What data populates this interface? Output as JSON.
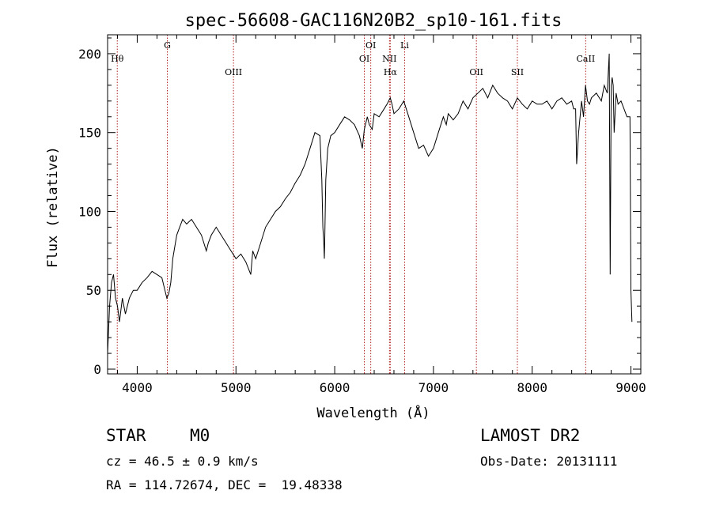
{
  "chart_data": {
    "type": "line",
    "title": "spec-56608-GAC116N20B2_sp10-161.fits",
    "xlabel": "Wavelength (Å)",
    "ylabel": "Flux (relative)",
    "xlim": [
      3700,
      9100
    ],
    "ylim": [
      -3,
      212
    ],
    "xticks": [
      4000,
      5000,
      6000,
      7000,
      8000,
      9000
    ],
    "yticks": [
      0,
      50,
      100,
      150,
      200
    ],
    "grid": false,
    "line_color": "#000000",
    "marker_color": "#b22222",
    "series": [
      {
        "x": [
          3700,
          3720,
          3740,
          3760,
          3780,
          3800,
          3820,
          3850,
          3880,
          3920,
          3960,
          4000,
          4050,
          4100,
          4150,
          4200,
          4250,
          4300,
          4320,
          4340,
          4360,
          4400,
          4430,
          4460,
          4500,
          4550,
          4600,
          4650,
          4700,
          4720,
          4750,
          4800,
          4850,
          4900,
          4950,
          4980,
          5000,
          5050,
          5100,
          5150,
          5170,
          5200,
          5250,
          5300,
          5350,
          5400,
          5450,
          5500,
          5550,
          5600,
          5650,
          5700,
          5750,
          5800,
          5850,
          5870,
          5880,
          5890,
          5895,
          5900,
          5910,
          5930,
          5960,
          6000,
          6050,
          6100,
          6150,
          6200,
          6250,
          6280,
          6300,
          6330,
          6350,
          6380,
          6400,
          6450,
          6500,
          6530,
          6563,
          6580,
          6600,
          6650,
          6700,
          6750,
          6800,
          6850,
          6900,
          6950,
          7000,
          7050,
          7100,
          7130,
          7150,
          7200,
          7250,
          7300,
          7350,
          7400,
          7450,
          7500,
          7550,
          7600,
          7650,
          7700,
          7750,
          7800,
          7850,
          7900,
          7950,
          8000,
          8050,
          8100,
          8150,
          8200,
          8250,
          8300,
          8350,
          8400,
          8420,
          8440,
          8450,
          8470,
          8500,
          8520,
          8540,
          8560,
          8580,
          8600,
          8650,
          8700,
          8730,
          8760,
          8780,
          8790,
          8800,
          8810,
          8820,
          8830,
          8850,
          8870,
          8900,
          8930,
          8960,
          8990,
          9000,
          9010
        ],
        "y": [
          10,
          40,
          55,
          60,
          45,
          40,
          30,
          45,
          35,
          45,
          50,
          50,
          55,
          58,
          62,
          60,
          58,
          45,
          48,
          55,
          70,
          85,
          90,
          95,
          92,
          95,
          90,
          85,
          75,
          80,
          85,
          90,
          85,
          80,
          75,
          72,
          70,
          73,
          68,
          60,
          75,
          70,
          80,
          90,
          95,
          100,
          103,
          108,
          112,
          118,
          123,
          130,
          140,
          150,
          148,
          120,
          90,
          80,
          70,
          85,
          120,
          140,
          148,
          150,
          155,
          160,
          158,
          155,
          148,
          140,
          152,
          160,
          155,
          152,
          162,
          160,
          165,
          168,
          172,
          168,
          162,
          165,
          170,
          160,
          150,
          140,
          142,
          135,
          140,
          150,
          160,
          155,
          162,
          158,
          162,
          170,
          165,
          172,
          175,
          178,
          172,
          180,
          175,
          172,
          170,
          165,
          172,
          168,
          165,
          170,
          168,
          168,
          170,
          165,
          170,
          172,
          168,
          170,
          165,
          165,
          130,
          150,
          170,
          160,
          180,
          170,
          168,
          172,
          175,
          170,
          180,
          175,
          200,
          60,
          180,
          185,
          180,
          150,
          175,
          168,
          170,
          165,
          160,
          160,
          50,
          30
        ]
      }
    ],
    "line_markers": [
      {
        "label": "Hθ",
        "x": 3798,
        "row": 2
      },
      {
        "label": "G",
        "x": 4305,
        "row": 1
      },
      {
        "label": "OIII",
        "x": 4975,
        "row": 3
      },
      {
        "label": "OI",
        "x": 6300,
        "row": 2
      },
      {
        "label": "OI",
        "x": 6365,
        "row": 1
      },
      {
        "label": "NII",
        "x": 6555,
        "row": 2
      },
      {
        "label": "Hα",
        "x": 6563,
        "row": 3
      },
      {
        "label": "Li",
        "x": 6708,
        "row": 1
      },
      {
        "label": "OII",
        "x": 7435,
        "row": 3
      },
      {
        "label": "SII",
        "x": 7850,
        "row": 3
      },
      {
        "label": "CaII",
        "x": 8542,
        "row": 2
      }
    ]
  },
  "info": {
    "class": "STAR",
    "subclass": "M0",
    "survey": "LAMOST DR2",
    "cz": "cz = 46.5 ± 0.9 km/s",
    "obsdate": "Obs-Date: 20131111",
    "radec": "RA = 114.72674, DEC =  19.48338"
  }
}
